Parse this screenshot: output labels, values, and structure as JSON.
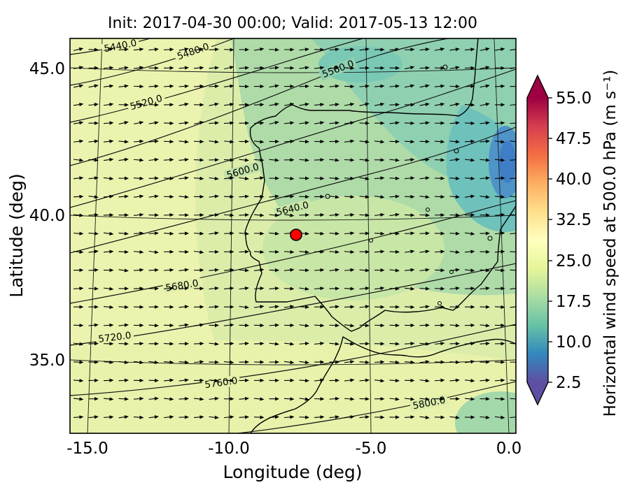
{
  "title": "Init: 2017-04-30 00:00; Valid: 2017-05-13 12:00",
  "axes": {
    "xlabel": "Longitude (deg)",
    "ylabel": "Latitude (deg)",
    "x_tick_labels": [
      "-15.0",
      "-10.0",
      "-5.0",
      "0.0"
    ],
    "y_tick_labels": [
      "45.0",
      "40.0",
      "35.0"
    ]
  },
  "colorbar": {
    "label": "Horizontal wind speed at 500.0 hPa (m s⁻¹)",
    "tick_labels_top_to_bottom": [
      "55.0",
      "47.5",
      "40.0",
      "32.5",
      "25.0",
      "17.5",
      "10.0",
      "2.5"
    ],
    "gradient_colors": [
      "#5e4fa2",
      "#3288bd",
      "#66c2a5",
      "#abdda4",
      "#e6f598",
      "#ffffbf",
      "#fee08b",
      "#fdae61",
      "#f46d43",
      "#d53e4f",
      "#9e0142"
    ],
    "under_color": "#5e4fa2",
    "over_color": "#9e0142"
  },
  "contour_labels": [
    "5440.0",
    "5480.0",
    "5520.0",
    "5560.0",
    "5600.0",
    "5640.0",
    "5680.0",
    "5720.0",
    "5760.0",
    "5800.0"
  ],
  "chart_data": {
    "type": "heatmap",
    "title": "Init: 2017-04-30 00:00; Valid: 2017-05-13 12:00",
    "init_time": "2017-04-30 00:00",
    "valid_time": "2017-05-13 12:00",
    "xlabel": "Longitude (deg)",
    "ylabel": "Latitude (deg)",
    "x_ticks": [
      -15.0,
      -10.0,
      -5.0,
      0.0
    ],
    "y_ticks": [
      35.0,
      40.0,
      45.0
    ],
    "xlim": [
      -15.5,
      0.3
    ],
    "ylim": [
      32.5,
      46.1
    ],
    "map_region": "Iberian Peninsula and surrounding waters",
    "fill_variable": "Horizontal wind speed at 500.0 hPa (m s⁻¹)",
    "fill_levels": [
      2.5,
      10.0,
      17.5,
      25.0,
      32.5,
      40.0,
      47.5,
      55.0
    ],
    "colormap": "spectral reversed (purple-blue-teal-green-yellow-orange-red)",
    "fill_summary": "mostly 17.5-27.5 m/s over Iberia; teal 10-17.5 patches north and east; small blue <10 patch at east edge near 42N",
    "contour_variable": "geopotential height at 500 hPa (m)",
    "contour_levels": [
      5440.0,
      5480.0,
      5520.0,
      5560.0,
      5600.0,
      5640.0,
      5680.0,
      5720.0,
      5760.0,
      5800.0
    ],
    "contour_orientation": "values increase from northwest (5440) to southeast (5800); lines slope up toward northeast",
    "wind_arrows": "quiver grid, predominantly westerly (eastward-pointing) flow",
    "marker_point": {
      "lon": -7.6,
      "lat": 39.4,
      "color": "#ff0000",
      "style": "red filled circle with black edge"
    }
  }
}
